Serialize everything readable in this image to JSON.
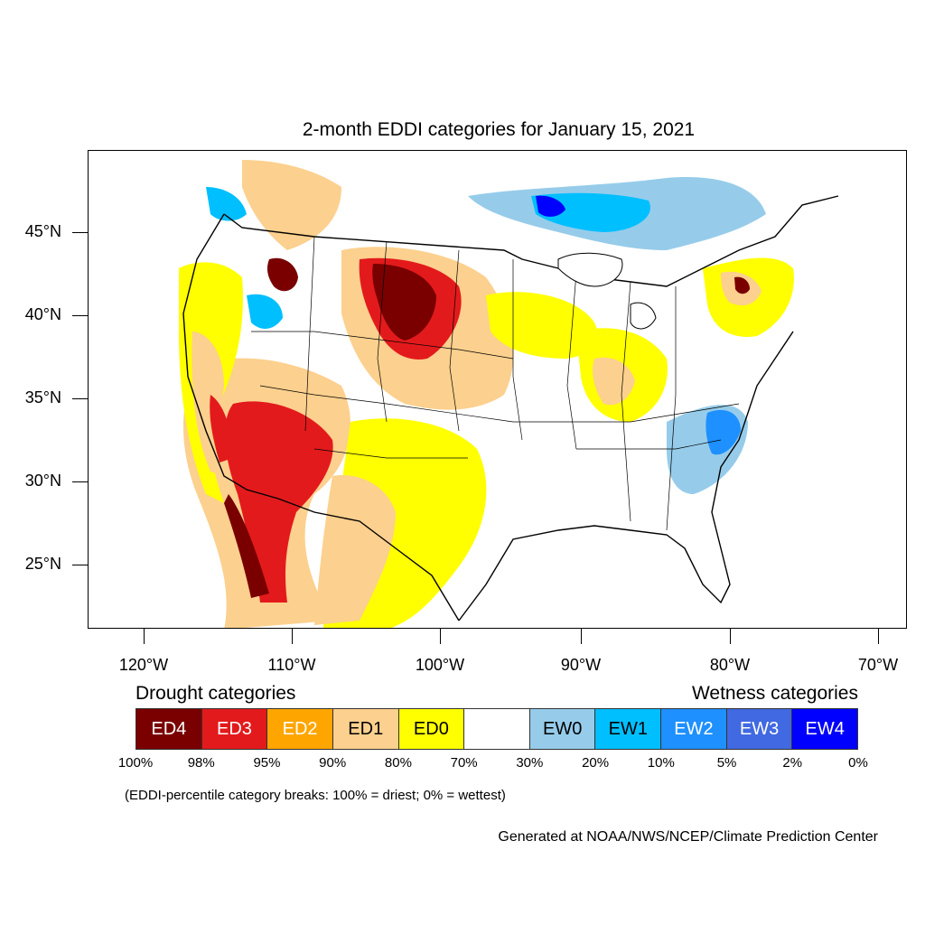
{
  "title": "2-month EDDI categories for January 15, 2021",
  "axes": {
    "lat_labels": [
      "45°N",
      "40°N",
      "35°N",
      "30°N",
      "25°N"
    ],
    "lon_labels": [
      "120°W",
      "110°W",
      "100°W",
      "90°W",
      "80°W",
      "70°W"
    ]
  },
  "legend": {
    "drought_title": "Drought categories",
    "wetness_title": "Wetness categories",
    "categories": [
      {
        "label": "ED4",
        "color": "#7a0000",
        "text_color": "#ffffff"
      },
      {
        "label": "ED3",
        "color": "#e31a1c",
        "text_color": "#ffffff"
      },
      {
        "label": "ED2",
        "color": "#ffa500",
        "text_color": "#ffffff"
      },
      {
        "label": "ED1",
        "color": "#fcd08e",
        "text_color": "#000000"
      },
      {
        "label": "ED0",
        "color": "#ffff00",
        "text_color": "#000000"
      },
      {
        "label": "",
        "color": "#ffffff",
        "text_color": "#000000"
      },
      {
        "label": "EW0",
        "color": "#96ccea",
        "text_color": "#000000"
      },
      {
        "label": "EW1",
        "color": "#00bfff",
        "text_color": "#000000"
      },
      {
        "label": "EW2",
        "color": "#1e90ff",
        "text_color": "#ffffff"
      },
      {
        "label": "EW3",
        "color": "#4169e1",
        "text_color": "#ffffff"
      },
      {
        "label": "EW4",
        "color": "#0000ff",
        "text_color": "#ffffff"
      }
    ],
    "percentiles": [
      "100%",
      "98%",
      "95%",
      "90%",
      "80%",
      "70%",
      "30%",
      "20%",
      "10%",
      "5%",
      "2%",
      "0%"
    ]
  },
  "note": "(EDDI-percentile category breaks: 100% = driest; 0% = wettest)",
  "credit": "Generated at NOAA/NWS/NCEP/Climate Prediction Center"
}
